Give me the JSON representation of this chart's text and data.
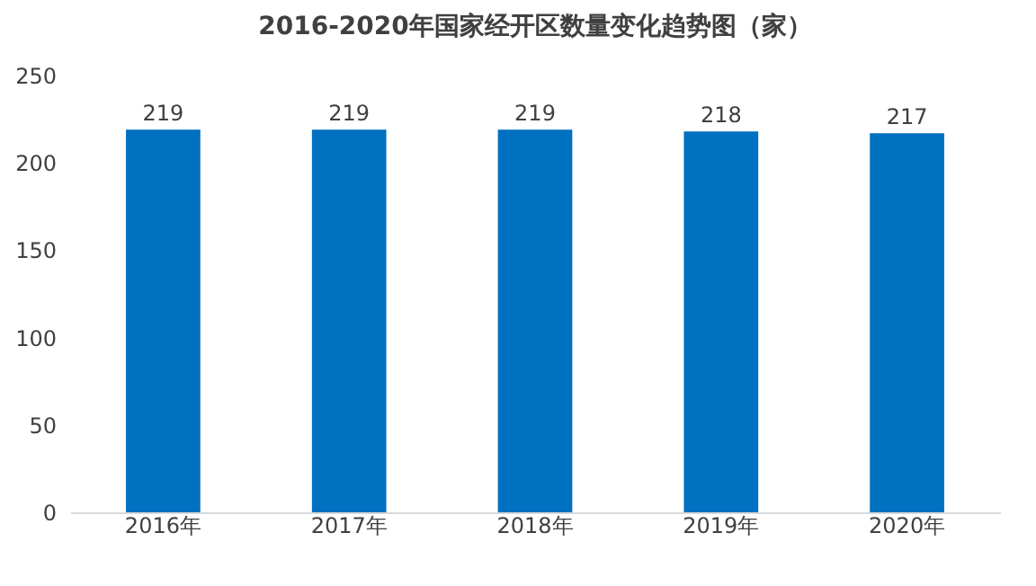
{
  "chart_data": {
    "type": "bar",
    "title": "2016-2020年国家经开区数量变化趋势图（家）",
    "categories": [
      "2016年",
      "2017年",
      "2018年",
      "2019年",
      "2020年"
    ],
    "values": [
      219,
      219,
      219,
      218,
      217
    ],
    "color": "#0070c0",
    "ylim": [
      0,
      250
    ],
    "yticks": [
      0,
      50,
      100,
      150,
      200,
      250
    ],
    "grid": false,
    "data_labels": true
  }
}
